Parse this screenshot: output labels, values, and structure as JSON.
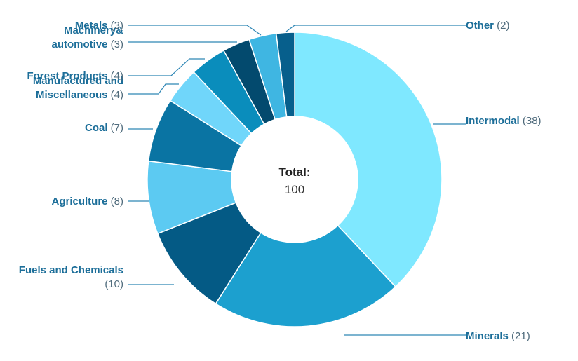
{
  "chart_data": {
    "type": "pie",
    "donut": true,
    "center_label": "Total:",
    "center_value": "100",
    "colors": {
      "label_name": "#1c6e99",
      "label_value": "#4f6b7c",
      "leader_line": "#2e86b5",
      "slice_border": "#ffffff",
      "center_title": "#222222",
      "center_value": "#333333"
    },
    "slices": [
      {
        "name": "Intermodal",
        "value": 38,
        "color": "#7fe8ff",
        "label_lines": [
          "Intermodal (38)"
        ]
      },
      {
        "name": "Minerals",
        "value": 21,
        "color": "#1ca0cf",
        "label_lines": [
          "Minerals (21)"
        ]
      },
      {
        "name": "Fuels and Chemicals",
        "value": 10,
        "color": "#045a85",
        "label_lines": [
          "Fuels and Chemicals",
          "(10)"
        ]
      },
      {
        "name": "Agriculture",
        "value": 8,
        "color": "#5ccaf2",
        "label_lines": [
          "Agriculture (8)"
        ]
      },
      {
        "name": "Coal",
        "value": 7,
        "color": "#0a74a3",
        "label_lines": [
          "Coal (7)"
        ]
      },
      {
        "name": "Manufactured and Miscellaneous",
        "value": 4,
        "color": "#70d6fa",
        "label_lines": [
          "Manufactured and",
          "Miscellaneous (4)"
        ]
      },
      {
        "name": "Forest Products",
        "value": 4,
        "color": "#0a8dbc",
        "label_lines": [
          "Forest Products (4)"
        ]
      },
      {
        "name": "Machinery& automotive",
        "value": 3,
        "color": "#034a6e",
        "label_lines": [
          "Machinery&",
          "automotive (3)"
        ]
      },
      {
        "name": "Metals",
        "value": 3,
        "color": "#3fb6e2",
        "label_lines": [
          "Metals (3)"
        ]
      },
      {
        "name": "Other",
        "value": 2,
        "color": "#075f8c",
        "label_lines": [
          "Other (2)"
        ]
      }
    ]
  }
}
